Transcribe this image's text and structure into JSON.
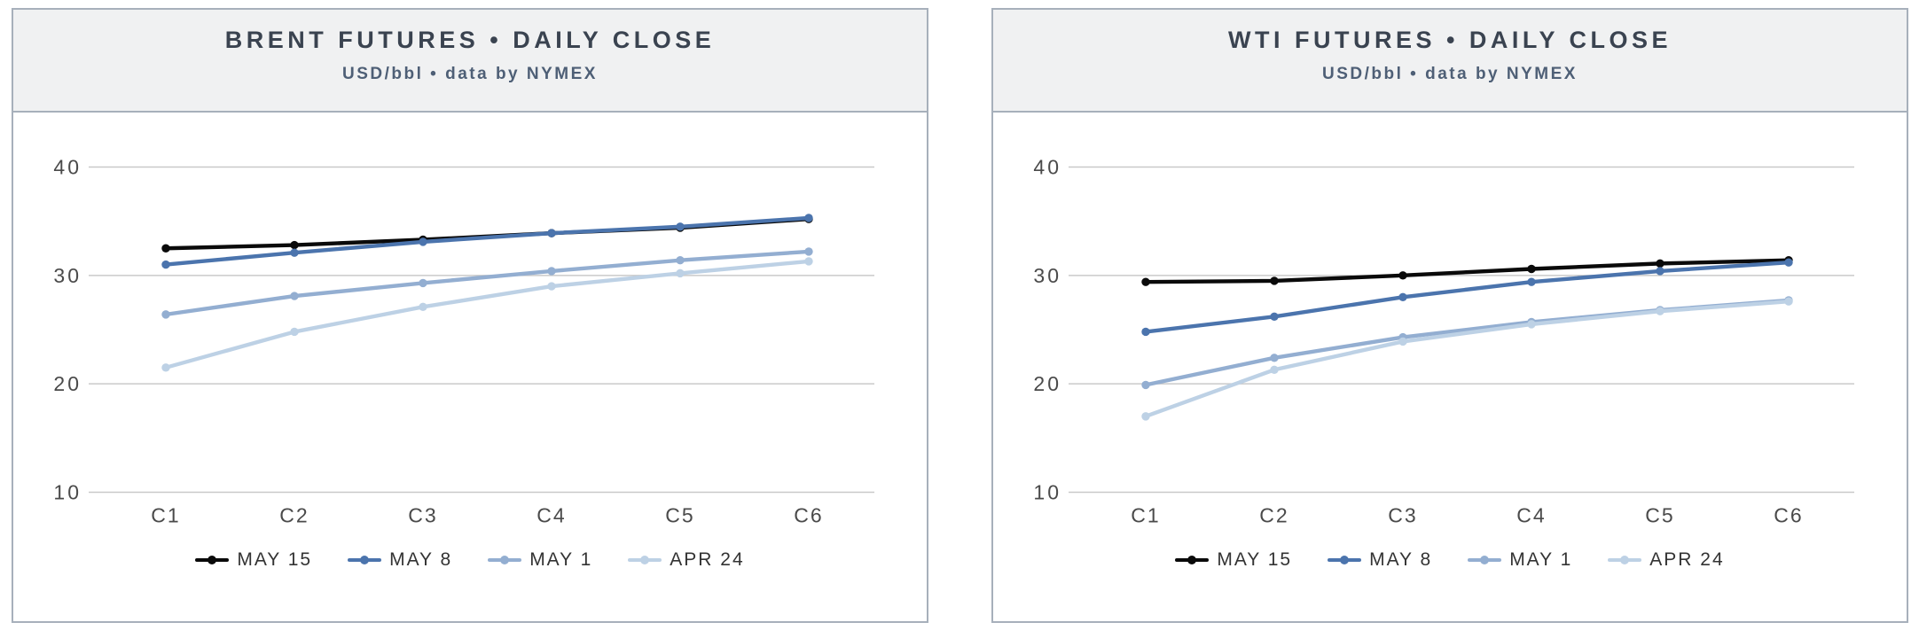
{
  "colors": {
    "panel_border": "#a7b0bb",
    "header_background": "#f0f1f2",
    "title_text": "#3a4350",
    "subtitle_text": "#4e5f76",
    "gridline": "#c9c9c9",
    "axis_tick_text": "#4a4a4a",
    "legend_text": "#333333",
    "series_may15": "#0a0a0a",
    "series_may8": "#4b74ad",
    "series_may1": "#93aed1",
    "series_apr24": "#bdd1e5"
  },
  "chart_data": [
    {
      "type": "line",
      "title": "BRENT FUTURES • DAILY CLOSE",
      "subtitle": "USD/bbl • data by NYMEX",
      "categories": [
        "C1",
        "C2",
        "C3",
        "C4",
        "C5",
        "C6"
      ],
      "y_ticks": [
        40,
        30,
        20,
        10
      ],
      "ylim": [
        10,
        40
      ],
      "grid": true,
      "legend_position": "bottom",
      "markers": true,
      "series": [
        {
          "name": "MAY 15",
          "color": "#0a0a0a",
          "values": [
            32.5,
            32.8,
            33.3,
            33.9,
            34.4,
            35.2
          ]
        },
        {
          "name": "MAY 8",
          "color": "#4b74ad",
          "values": [
            31.0,
            32.1,
            33.1,
            33.9,
            34.5,
            35.3
          ]
        },
        {
          "name": "MAY 1",
          "color": "#93aed1",
          "values": [
            26.4,
            28.1,
            29.3,
            30.4,
            31.4,
            32.2
          ]
        },
        {
          "name": "APR 24",
          "color": "#bdd1e5",
          "values": [
            21.5,
            24.8,
            27.1,
            29.0,
            30.2,
            31.3
          ]
        }
      ]
    },
    {
      "type": "line",
      "title": "WTI FUTURES • DAILY CLOSE",
      "subtitle": "USD/bbl • data by NYMEX",
      "categories": [
        "C1",
        "C2",
        "C3",
        "C4",
        "C5",
        "C6"
      ],
      "y_ticks": [
        40,
        30,
        20,
        10
      ],
      "ylim": [
        10,
        40
      ],
      "grid": true,
      "legend_position": "bottom",
      "markers": true,
      "series": [
        {
          "name": "MAY 15",
          "color": "#0a0a0a",
          "values": [
            29.4,
            29.5,
            30.0,
            30.6,
            31.1,
            31.4
          ]
        },
        {
          "name": "MAY 8",
          "color": "#4b74ad",
          "values": [
            24.8,
            26.2,
            28.0,
            29.4,
            30.4,
            31.2
          ]
        },
        {
          "name": "MAY 1",
          "color": "#93aed1",
          "values": [
            19.9,
            22.4,
            24.3,
            25.7,
            26.8,
            27.7
          ]
        },
        {
          "name": "APR 24",
          "color": "#bdd1e5",
          "values": [
            17.0,
            21.3,
            23.9,
            25.5,
            26.7,
            27.6
          ]
        }
      ]
    }
  ]
}
